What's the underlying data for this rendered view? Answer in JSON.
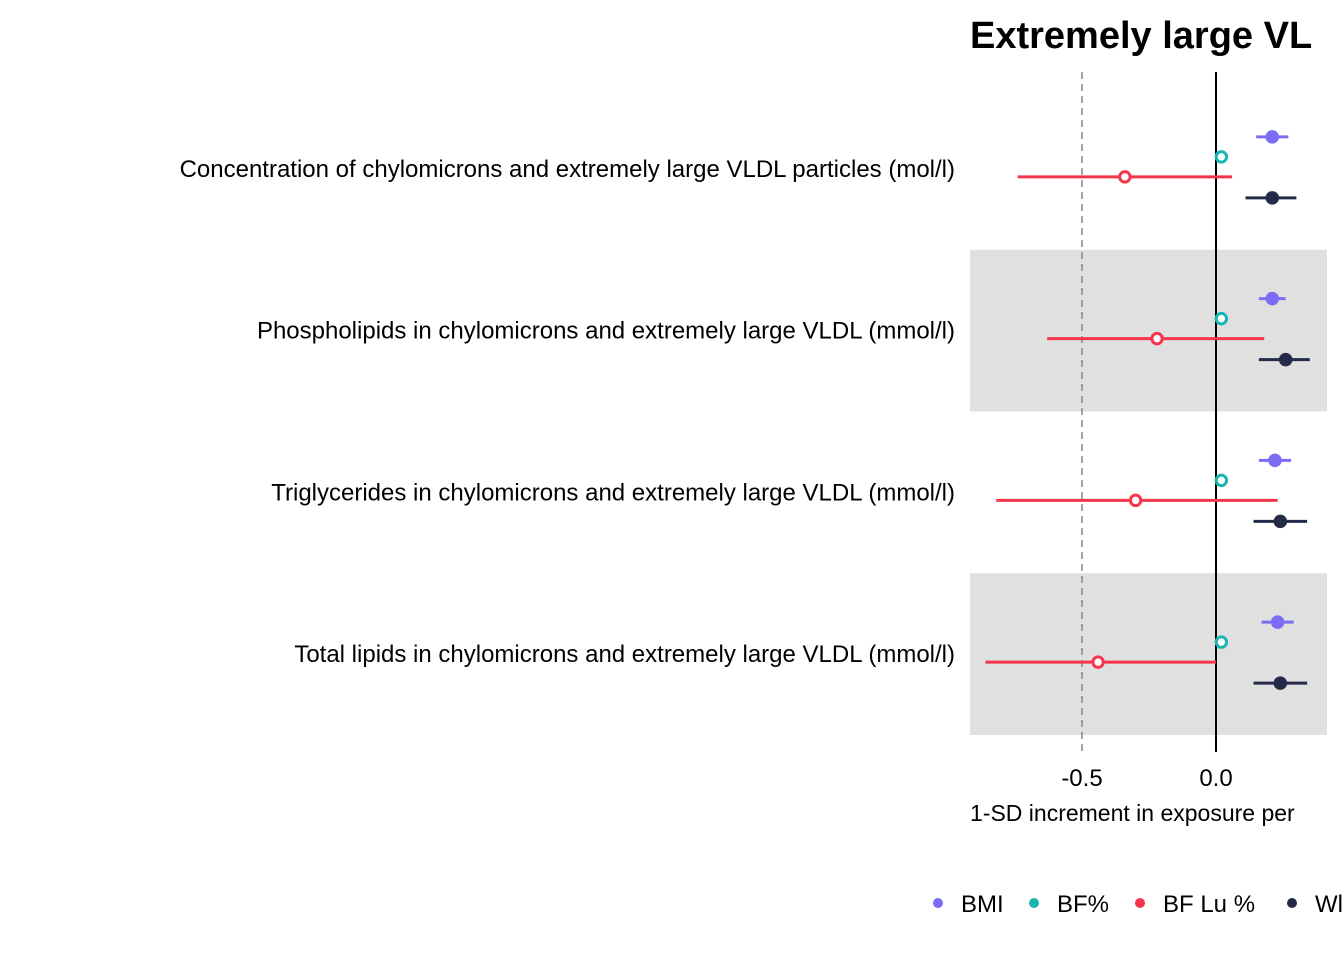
{
  "chart_data": {
    "type": "scatter",
    "title": "Extremely large VL",
    "xlabel": "1-SD increment in exposure per",
    "x_ticks": [
      -0.5,
      0.0
    ],
    "x_tick_labels": [
      "-0.5",
      "0.0"
    ],
    "xlim": [
      -0.92,
      0.42
    ],
    "reference_lines": [
      {
        "x": 0.0,
        "style": "solid"
      },
      {
        "x": -0.5,
        "style": "dashed"
      }
    ],
    "categories": [
      "Concentration of chylomicrons and extremely large VLDL particles (mol/l)",
      "Phospholipids in chylomicrons and extremely large VLDL (mmol/l)",
      "Triglycerides in chylomicrons and extremely large VLDL (mmol/l)",
      "Total lipids in chylomicrons and extremely large VLDL (mmol/l)"
    ],
    "series": [
      {
        "name": "BMI",
        "color": "#7b6cf6",
        "marker": "filled",
        "estimates": [
          0.21,
          0.21,
          0.22,
          0.23
        ],
        "ci_low": [
          0.15,
          0.16,
          0.16,
          0.17
        ],
        "ci_high": [
          0.27,
          0.26,
          0.28,
          0.29
        ]
      },
      {
        "name": "BF%",
        "color": "#1ab5b0",
        "marker": "open",
        "estimates": [
          0.02,
          0.02,
          0.02,
          0.02
        ],
        "ci_low": [
          null,
          null,
          null,
          null
        ],
        "ci_high": [
          null,
          null,
          null,
          null
        ]
      },
      {
        "name": "BF Lu %",
        "color": "#f5364a",
        "marker": "open",
        "estimates": [
          -0.34,
          -0.22,
          -0.3,
          -0.44
        ],
        "ci_low": [
          -0.74,
          -0.63,
          -0.82,
          -0.86
        ],
        "ci_high": [
          0.06,
          0.18,
          0.23,
          0.0
        ]
      },
      {
        "name": "W",
        "color": "#232b48",
        "marker": "filled",
        "estimates": [
          0.21,
          0.26,
          0.24,
          0.24
        ],
        "ci_low": [
          0.11,
          0.16,
          0.14,
          0.14
        ],
        "ci_high": [
          0.3,
          0.35,
          0.34,
          0.34
        ]
      }
    ],
    "legend": {
      "placement": "bottom",
      "labels": [
        "BMI",
        "BF%",
        "BF Lu %",
        "Wl"
      ]
    },
    "grid": false,
    "band_shading": "alternate rows gray"
  }
}
